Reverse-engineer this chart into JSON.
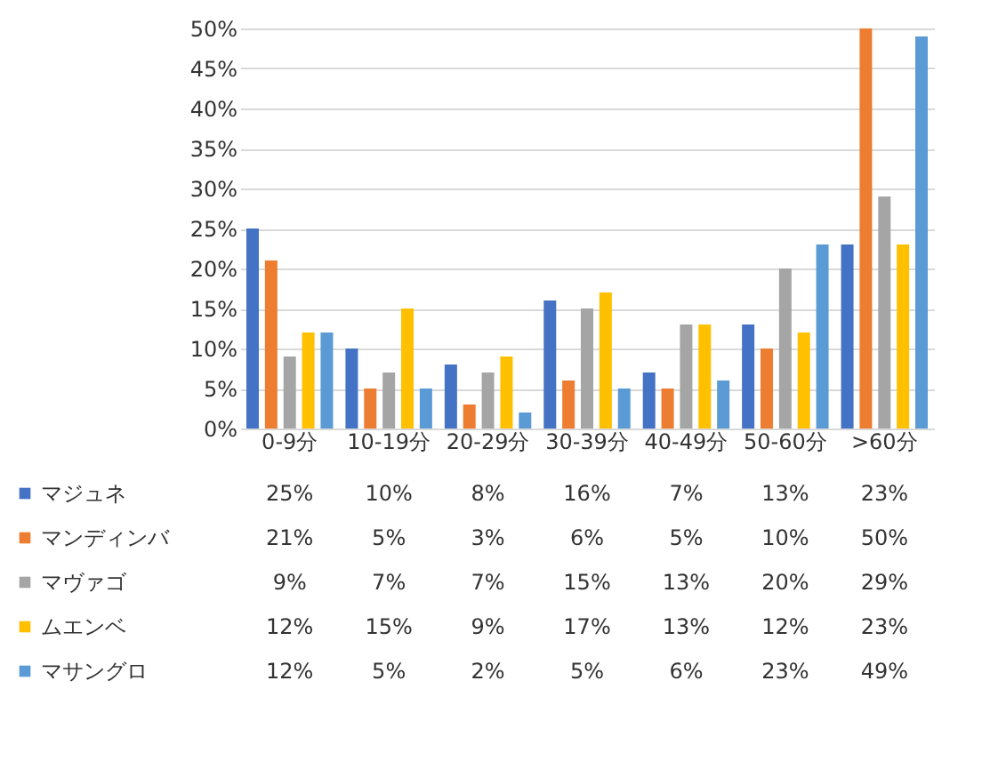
{
  "chart_data": {
    "type": "bar",
    "categories": [
      "0-9分",
      "10-19分",
      "20-29分",
      "30-39分",
      "40-49分",
      "50-60分",
      ">60分"
    ],
    "series": [
      {
        "name": "マジュネ",
        "color": "#4472c4",
        "values": [
          25,
          10,
          8,
          16,
          7,
          13,
          23
        ],
        "value_labels": [
          "25%",
          "10%",
          "8%",
          "16%",
          "7%",
          "13%",
          "23%"
        ]
      },
      {
        "name": "マンディンバ",
        "color": "#ed7d31",
        "values": [
          21,
          5,
          3,
          6,
          5,
          10,
          50
        ],
        "value_labels": [
          "21%",
          "5%",
          "3%",
          "6%",
          "5%",
          "10%",
          "50%"
        ]
      },
      {
        "name": "マヴァゴ",
        "color": "#a5a5a5",
        "values": [
          9,
          7,
          7,
          15,
          13,
          20,
          29
        ],
        "value_labels": [
          "9%",
          "7%",
          "7%",
          "15%",
          "13%",
          "20%",
          "29%"
        ]
      },
      {
        "name": "ムエンベ",
        "color": "#ffc000",
        "values": [
          12,
          15,
          9,
          17,
          13,
          12,
          23
        ],
        "value_labels": [
          "12%",
          "15%",
          "9%",
          "17%",
          "13%",
          "12%",
          "23%"
        ]
      },
      {
        "name": "マサングロ",
        "color": "#5b9bd5",
        "values": [
          12,
          5,
          2,
          5,
          6,
          23,
          49
        ],
        "value_labels": [
          "12%",
          "5%",
          "2%",
          "5%",
          "6%",
          "23%",
          "49%"
        ]
      }
    ],
    "ylim": [
      0,
      50
    ],
    "yticks": [
      {
        "value": 0,
        "label": "0%"
      },
      {
        "value": 5,
        "label": "5%"
      },
      {
        "value": 10,
        "label": "10%"
      },
      {
        "value": 15,
        "label": "15%"
      },
      {
        "value": 20,
        "label": "20%"
      },
      {
        "value": 25,
        "label": "25%"
      },
      {
        "value": 30,
        "label": "30%"
      },
      {
        "value": 35,
        "label": "35%"
      },
      {
        "value": 40,
        "label": "40%"
      },
      {
        "value": 45,
        "label": "45%"
      },
      {
        "value": 50,
        "label": "50%"
      }
    ],
    "grid": "y",
    "legend": "bottom"
  }
}
